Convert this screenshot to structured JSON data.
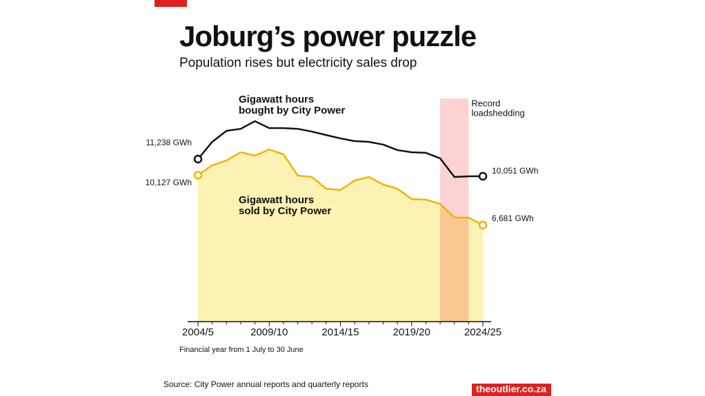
{
  "chart_data": {
    "type": "line",
    "title": "Joburg’s power puzzle",
    "subtitle": "Population rises but electricity sales drop",
    "x_label": "Financial year from 1 July to 30 June",
    "source": "Source: City Power annual reports and quarterly reports",
    "credit": "theoutlier.co.za",
    "categories": [
      "2004/5",
      null,
      null,
      null,
      null,
      "2009/10",
      null,
      null,
      null,
      null,
      "2014/15",
      null,
      null,
      null,
      null,
      "2019/20",
      null,
      null,
      null,
      null,
      "2024/25"
    ],
    "series": [
      {
        "name": [
          "Gigawatt hours",
          "bought by City Power"
        ],
        "color": "#111111",
        "area": false,
        "values": [
          11238,
          12430,
          13190,
          13330,
          13860,
          13380,
          13380,
          13330,
          13140,
          12900,
          12670,
          12480,
          12430,
          12240,
          11860,
          11710,
          11670,
          11290,
          10000,
          10050,
          10051
        ],
        "value_labels": [
          "11,238 GWh",
          null,
          null,
          null,
          null,
          null,
          null,
          null,
          null,
          null,
          null,
          null,
          null,
          null,
          null,
          null,
          null,
          null,
          null,
          null,
          "10,051 GWh"
        ]
      },
      {
        "name": [
          "Gigawatt hours",
          "sold by City Power"
        ],
        "color": "#f0b400",
        "area": true,
        "area_color": "#fcf2b3",
        "values": [
          10127,
          10810,
          11140,
          11710,
          11480,
          11900,
          11570,
          10100,
          10000,
          9190,
          9100,
          9760,
          10000,
          9480,
          9190,
          8480,
          8430,
          8140,
          7190,
          7190,
          6681
        ],
        "value_labels": [
          "10,127 GWh",
          null,
          null,
          null,
          null,
          null,
          null,
          null,
          null,
          null,
          null,
          null,
          null,
          null,
          null,
          null,
          null,
          null,
          null,
          null,
          "6,681 GWh"
        ]
      }
    ],
    "shade": {
      "label": [
        "Record",
        "loadshedding"
      ],
      "x": [
        17,
        19
      ],
      "color": "#fdd2d2"
    },
    "ylim": [
      0,
      14000
    ]
  }
}
